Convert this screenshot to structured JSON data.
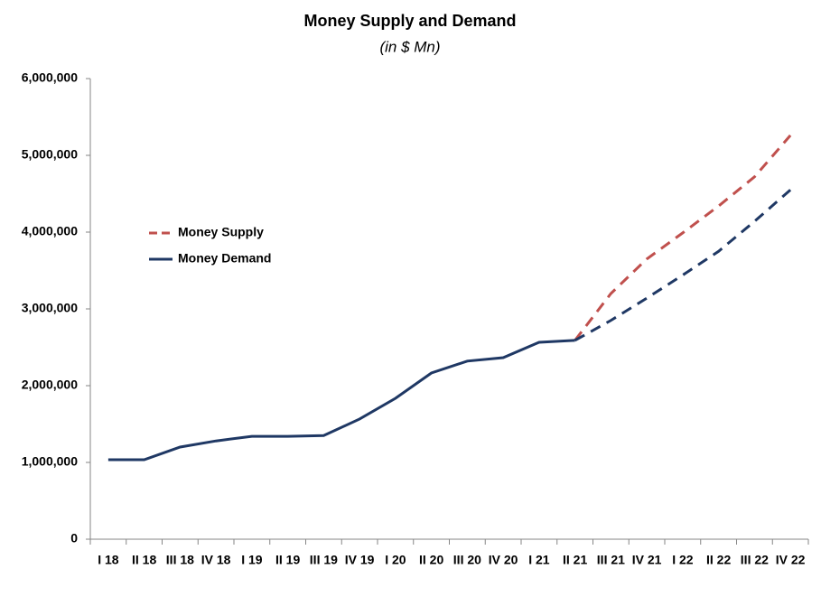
{
  "chart_data": {
    "type": "line",
    "title": "Money Supply and Demand",
    "subtitle": "(in $ Mn)",
    "categories": [
      "I 18",
      "II 18",
      "III 18",
      "IV 18",
      "I 19",
      "II 19",
      "III 19",
      "IV 19",
      "I 20",
      "II 20",
      "III 20",
      "IV 20",
      "I 21",
      "II 21",
      "III 21",
      "IV 21",
      "I 22",
      "II 22",
      "III 22",
      "IV 22"
    ],
    "series": [
      {
        "name": "Money Supply",
        "color": "#c0504d",
        "dashed": true,
        "values": [
          null,
          null,
          null,
          null,
          null,
          null,
          null,
          null,
          null,
          null,
          null,
          null,
          null,
          2590000,
          3200000,
          3650000,
          3990000,
          4340000,
          4720000,
          5260000
        ]
      },
      {
        "name": "Money Demand",
        "color": "#1f3864",
        "dashed_from_index": 13,
        "values": [
          1035000,
          1035000,
          1200000,
          1280000,
          1340000,
          1340000,
          1350000,
          1565000,
          1835000,
          2165000,
          2320000,
          2365000,
          2565000,
          2590000,
          2850000,
          3140000,
          3440000,
          3750000,
          4140000,
          4550000
        ]
      }
    ],
    "ylim": [
      0,
      6000000
    ],
    "yticks": [
      {
        "value": 0,
        "label": "0"
      },
      {
        "value": 1000000,
        "label": "1,000,000"
      },
      {
        "value": 2000000,
        "label": "2,000,000"
      },
      {
        "value": 3000000,
        "label": "3,000,000"
      },
      {
        "value": 4000000,
        "label": "4,000,000"
      },
      {
        "value": 5000000,
        "label": "5,000,000"
      },
      {
        "value": 6000000,
        "label": "6,000,000"
      }
    ],
    "grid": false,
    "legend": "upper left"
  }
}
